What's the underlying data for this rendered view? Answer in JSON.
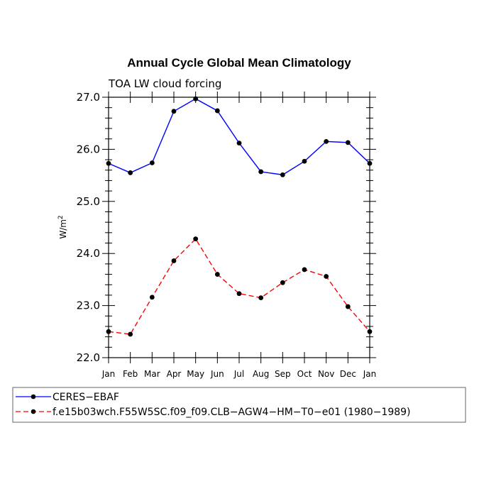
{
  "chart_data": {
    "type": "line",
    "title": "Annual Cycle Global Mean Climatology",
    "subtitle": "TOA LW cloud forcing",
    "ylabel": "W/m",
    "ylabel_superscript": "2",
    "ylim": [
      22.0,
      27.0
    ],
    "yticks": [
      "22.0",
      "23.0",
      "24.0",
      "25.0",
      "26.0",
      "27.0"
    ],
    "categories": [
      "Jan",
      "Feb",
      "Mar",
      "Apr",
      "May",
      "Jun",
      "Jul",
      "Aug",
      "Sep",
      "Oct",
      "Nov",
      "Dec",
      "Jan"
    ],
    "legend_position": "bottom",
    "series": [
      {
        "name": "CERES−EBAF",
        "color": "#0000ff",
        "dash": "solid",
        "values": [
          25.73,
          25.55,
          25.74,
          26.73,
          26.97,
          26.74,
          26.12,
          25.57,
          25.51,
          25.77,
          26.15,
          26.13,
          25.73
        ]
      },
      {
        "name": "f.e15b03wch.F55W5SC.f09_f09.CLB−AGW4−HM−T0−e01 (1980−1989)",
        "color": "#ff0000",
        "dash": "dashed",
        "values": [
          22.5,
          22.45,
          23.16,
          23.86,
          24.28,
          23.6,
          23.23,
          23.15,
          23.44,
          23.69,
          23.56,
          22.98,
          22.5
        ]
      }
    ]
  }
}
